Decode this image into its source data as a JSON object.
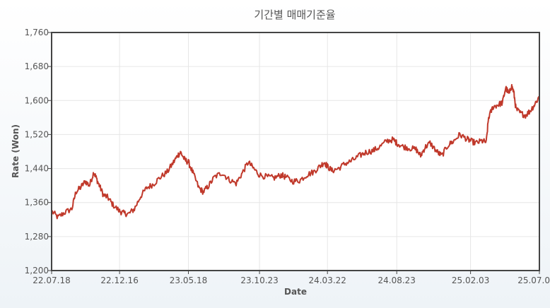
{
  "chart_data": {
    "type": "line",
    "title": "기간별 매매기준율",
    "xlabel": "Date",
    "ylabel": "Rate (Won)",
    "ylim": [
      1200,
      1760
    ],
    "y_ticks": [
      "1,200",
      "1,280",
      "1,360",
      "1,440",
      "1,520",
      "1,600",
      "1,680",
      "1,760"
    ],
    "y_tick_values": [
      1200,
      1280,
      1360,
      1440,
      1520,
      1600,
      1680,
      1760
    ],
    "x_ticks": [
      "22.07.18",
      "22.12.16",
      "23.05.18",
      "23.10.23",
      "24.03.22",
      "24.08.23",
      "25.02.03",
      "25.07.0"
    ],
    "x_tick_dates": [
      "2022-07-18",
      "2022-12-16",
      "2023-05-18",
      "2023-10-23",
      "2024-03-22",
      "2024-08-23",
      "2025-02-03",
      "2025-07-06"
    ],
    "xlim": [
      "2022-07-18",
      "2025-07-06"
    ],
    "grid": true,
    "line_color": "#c0392b",
    "series": [
      {
        "name": "",
        "points": [
          [
            "2022-07-18",
            1340
          ],
          [
            "2022-08-01",
            1325
          ],
          [
            "2022-08-15",
            1336
          ],
          [
            "2022-09-01",
            1345
          ],
          [
            "2022-09-10",
            1385
          ],
          [
            "2022-09-20",
            1395
          ],
          [
            "2022-10-01",
            1410
          ],
          [
            "2022-10-10",
            1400
          ],
          [
            "2022-10-20",
            1432
          ],
          [
            "2022-10-25",
            1418
          ],
          [
            "2022-11-01",
            1400
          ],
          [
            "2022-11-10",
            1378
          ],
          [
            "2022-11-20",
            1372
          ],
          [
            "2022-12-01",
            1355
          ],
          [
            "2022-12-16",
            1340
          ],
          [
            "2022-12-25",
            1335
          ],
          [
            "2023-01-05",
            1333
          ],
          [
            "2023-01-18",
            1345
          ],
          [
            "2023-02-01",
            1375
          ],
          [
            "2023-02-15",
            1395
          ],
          [
            "2023-03-01",
            1403
          ],
          [
            "2023-03-15",
            1418
          ],
          [
            "2023-04-01",
            1432
          ],
          [
            "2023-04-15",
            1455
          ],
          [
            "2023-04-25",
            1472
          ],
          [
            "2023-05-01",
            1478
          ],
          [
            "2023-05-10",
            1460
          ],
          [
            "2023-05-18",
            1455
          ],
          [
            "2023-05-28",
            1430
          ],
          [
            "2023-06-10",
            1395
          ],
          [
            "2023-06-20",
            1385
          ],
          [
            "2023-07-01",
            1398
          ],
          [
            "2023-07-15",
            1420
          ],
          [
            "2023-08-01",
            1430
          ],
          [
            "2023-08-15",
            1415
          ],
          [
            "2023-09-01",
            1405
          ],
          [
            "2023-09-15",
            1430
          ],
          [
            "2023-09-28",
            1455
          ],
          [
            "2023-10-10",
            1440
          ],
          [
            "2023-10-23",
            1425
          ],
          [
            "2023-11-10",
            1420
          ],
          [
            "2023-11-25",
            1418
          ],
          [
            "2023-12-10",
            1425
          ],
          [
            "2023-12-20",
            1420
          ],
          [
            "2024-01-05",
            1410
          ],
          [
            "2024-01-20",
            1412
          ],
          [
            "2024-02-05",
            1425
          ],
          [
            "2024-02-20",
            1432
          ],
          [
            "2024-03-05",
            1445
          ],
          [
            "2024-03-15",
            1455
          ],
          [
            "2024-03-22",
            1445
          ],
          [
            "2024-04-01",
            1435
          ],
          [
            "2024-04-15",
            1440
          ],
          [
            "2024-05-01",
            1452
          ],
          [
            "2024-05-15",
            1458
          ],
          [
            "2024-06-01",
            1470
          ],
          [
            "2024-06-15",
            1478
          ],
          [
            "2024-07-01",
            1482
          ],
          [
            "2024-07-15",
            1490
          ],
          [
            "2024-08-01",
            1505
          ],
          [
            "2024-08-15",
            1508
          ],
          [
            "2024-08-23",
            1500
          ],
          [
            "2024-09-05",
            1492
          ],
          [
            "2024-09-20",
            1488
          ],
          [
            "2024-10-05",
            1485
          ],
          [
            "2024-10-15",
            1470
          ],
          [
            "2024-10-25",
            1490
          ],
          [
            "2024-11-05",
            1500
          ],
          [
            "2024-11-20",
            1480
          ],
          [
            "2024-12-01",
            1470
          ],
          [
            "2024-12-15",
            1495
          ],
          [
            "2024-12-28",
            1505
          ],
          [
            "2025-01-10",
            1520
          ],
          [
            "2025-01-25",
            1510
          ],
          [
            "2025-02-03",
            1505
          ],
          [
            "2025-02-15",
            1500
          ],
          [
            "2025-02-28",
            1505
          ],
          [
            "2025-03-10",
            1502
          ],
          [
            "2025-03-15",
            1560
          ],
          [
            "2025-03-25",
            1585
          ],
          [
            "2025-04-05",
            1590
          ],
          [
            "2025-04-15",
            1595
          ],
          [
            "2025-04-22",
            1630
          ],
          [
            "2025-04-30",
            1615
          ],
          [
            "2025-05-05",
            1635
          ],
          [
            "2025-05-10",
            1620
          ],
          [
            "2025-05-15",
            1580
          ],
          [
            "2025-05-25",
            1570
          ],
          [
            "2025-06-05",
            1565
          ],
          [
            "2025-06-15",
            1575
          ],
          [
            "2025-06-25",
            1590
          ],
          [
            "2025-07-06",
            1610
          ]
        ]
      }
    ]
  }
}
